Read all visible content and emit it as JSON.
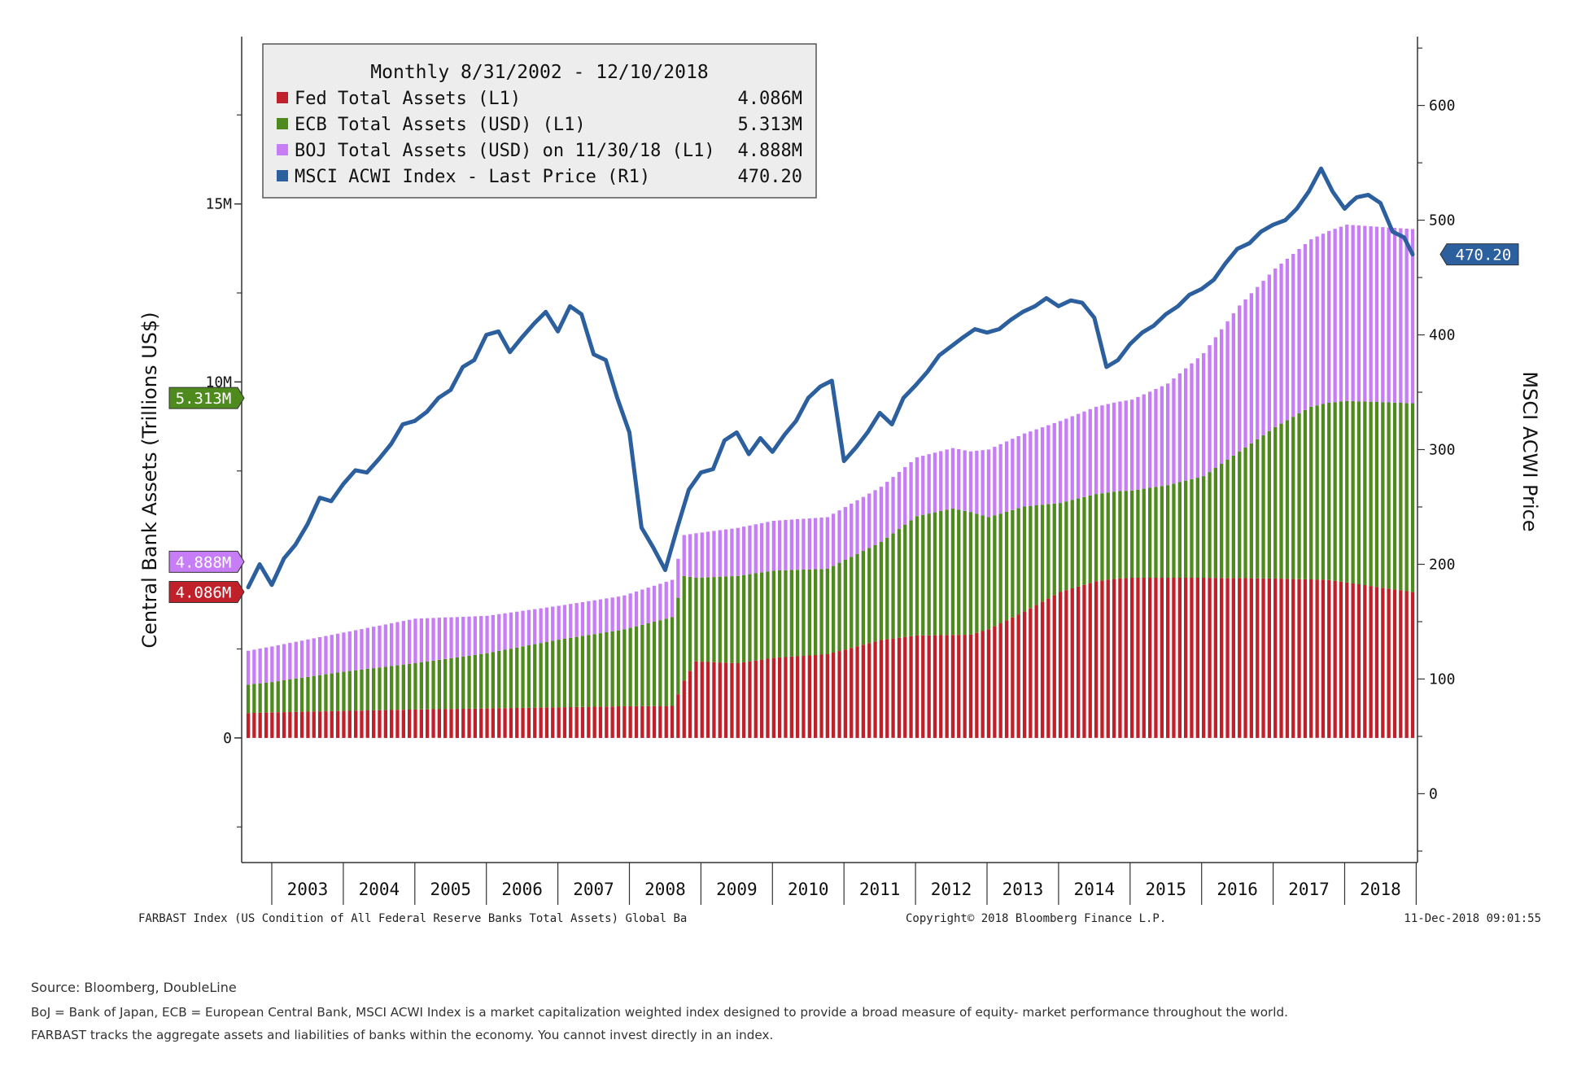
{
  "chart_data": {
    "type": "bar",
    "stacked": true,
    "period": "Monthly 8/31/2002 - 12/10/2018",
    "ylabel_left": "Central Bank Assets (Trillions US$)",
    "ylabel_right": "MSCI ACWI Price",
    "left_axis": {
      "min": -3.5,
      "max": 19.7,
      "ticks": [
        "0",
        "10M",
        "15M"
      ],
      "tick_values": [
        0,
        10,
        15
      ],
      "minor_step": 2.5
    },
    "right_axis": {
      "min": -60,
      "max": 660,
      "ticks": [
        "0",
        "100",
        "200",
        "300",
        "400",
        "500",
        "600"
      ],
      "tick_values": [
        0,
        100,
        200,
        300,
        400,
        500,
        600
      ]
    },
    "x_labels": [
      "2003",
      "2004",
      "2005",
      "2006",
      "2007",
      "2008",
      "2009",
      "2010",
      "2011",
      "2012",
      "2013",
      "2014",
      "2015",
      "2016",
      "2017",
      "2018"
    ],
    "x_start": 2002.67,
    "x_end": 2018.95,
    "legend": [
      {
        "label": "Fed Total Assets (L1)",
        "value": "4.086M",
        "color": "#c0202a"
      },
      {
        "label": "ECB Total Assets (USD) (L1)",
        "value": "5.313M",
        "color": "#4f8a1f"
      },
      {
        "label": "BOJ Total Assets (USD) on 11/30/18 (L1)",
        "value": "4.888M",
        "color": "#c77df6"
      },
      {
        "label": "MSCI ACWI Index - Last Price (R1)",
        "value": "470.20",
        "color": "#2c5f9e"
      }
    ],
    "last_value_tags": [
      {
        "value": "5.313M",
        "axis": "left",
        "color": "#4f8a1f"
      },
      {
        "value": "4.888M",
        "axis": "left",
        "color": "#c77df6"
      },
      {
        "value": "4.086M",
        "axis": "left",
        "color": "#c0202a"
      },
      {
        "value": "470.20",
        "axis": "right",
        "color": "#2c5f9e"
      }
    ],
    "fed_series": {
      "name": "Fed Total Assets (L1)",
      "x": [
        2002.67,
        2003.0,
        2004.0,
        2005.0,
        2006.0,
        2007.0,
        2007.9,
        2008.6,
        2008.75,
        2008.92,
        2009.5,
        2010.0,
        2010.75,
        2011.5,
        2012.0,
        2012.75,
        2013.0,
        2013.5,
        2014.0,
        2014.5,
        2014.8,
        2015.0,
        2016.0,
        2017.0,
        2017.75,
        2018.95
      ],
      "values": [
        0.7,
        0.72,
        0.76,
        0.8,
        0.83,
        0.86,
        0.89,
        0.9,
        1.6,
        2.15,
        2.1,
        2.25,
        2.35,
        2.75,
        2.88,
        2.9,
        3.05,
        3.55,
        4.1,
        4.4,
        4.48,
        4.5,
        4.5,
        4.48,
        4.44,
        4.09
      ]
    },
    "ecb_series": {
      "name": "ECB Total Assets (USD) (L1)",
      "x": [
        2002.67,
        2003.0,
        2004.0,
        2005.0,
        2006.0,
        2007.0,
        2007.9,
        2008.6,
        2008.75,
        2008.92,
        2009.5,
        2010.0,
        2010.75,
        2011.5,
        2012.0,
        2012.5,
        2012.75,
        2013.0,
        2013.5,
        2014.0,
        2014.5,
        2015.0,
        2015.5,
        2016.0,
        2016.5,
        2017.0,
        2017.5,
        2018.0,
        2018.95
      ],
      "values": [
        0.8,
        0.85,
        1.1,
        1.3,
        1.55,
        1.9,
        2.15,
        2.5,
        2.95,
        2.35,
        2.45,
        2.45,
        2.4,
        2.75,
        3.35,
        3.55,
        3.45,
        3.15,
        2.95,
        2.5,
        2.45,
        2.45,
        2.6,
        2.85,
        3.55,
        4.25,
        4.85,
        5.1,
        5.31
      ]
    },
    "boj_series": {
      "name": "BOJ Total Assets (USD) on 11/30/18 (L1)",
      "x": [
        2002.67,
        2003.0,
        2004.0,
        2005.0,
        2006.0,
        2007.0,
        2007.9,
        2008.6,
        2008.75,
        2008.92,
        2009.5,
        2010.0,
        2010.75,
        2011.5,
        2012.0,
        2012.5,
        2012.75,
        2013.0,
        2013.5,
        2014.0,
        2014.5,
        2015.0,
        2015.5,
        2016.0,
        2016.5,
        2017.0,
        2017.5,
        2018.0,
        2018.95
      ],
      "values": [
        0.95,
        1.0,
        1.1,
        1.25,
        1.05,
        0.95,
        0.95,
        1.05,
        1.15,
        1.25,
        1.35,
        1.4,
        1.45,
        1.55,
        1.65,
        1.7,
        1.7,
        1.9,
        2.05,
        2.3,
        2.45,
        2.55,
        2.85,
        3.45,
        4.1,
        4.45,
        4.7,
        4.95,
        4.89
      ]
    },
    "msci_series": {
      "name": "MSCI ACWI Index - Last Price (R1)",
      "x": [
        2002.67,
        2002.83,
        2003.0,
        2003.17,
        2003.33,
        2003.5,
        2003.67,
        2003.83,
        2004.0,
        2004.17,
        2004.33,
        2004.5,
        2004.67,
        2004.83,
        2005.0,
        2005.17,
        2005.33,
        2005.5,
        2005.67,
        2005.83,
        2006.0,
        2006.17,
        2006.33,
        2006.5,
        2006.67,
        2006.83,
        2007.0,
        2007.17,
        2007.33,
        2007.5,
        2007.67,
        2007.83,
        2008.0,
        2008.17,
        2008.33,
        2008.5,
        2008.67,
        2008.83,
        2009.0,
        2009.17,
        2009.33,
        2009.5,
        2009.67,
        2009.83,
        2010.0,
        2010.17,
        2010.33,
        2010.5,
        2010.67,
        2010.83,
        2011.0,
        2011.17,
        2011.33,
        2011.5,
        2011.67,
        2011.83,
        2012.0,
        2012.17,
        2012.33,
        2012.5,
        2012.67,
        2012.83,
        2013.0,
        2013.17,
        2013.33,
        2013.5,
        2013.67,
        2013.83,
        2014.0,
        2014.17,
        2014.33,
        2014.5,
        2014.67,
        2014.83,
        2015.0,
        2015.17,
        2015.33,
        2015.5,
        2015.67,
        2015.83,
        2016.0,
        2016.17,
        2016.33,
        2016.5,
        2016.67,
        2016.83,
        2017.0,
        2017.17,
        2017.33,
        2017.5,
        2017.67,
        2017.83,
        2018.0,
        2018.08,
        2018.17,
        2018.33,
        2018.5,
        2018.67,
        2018.83,
        2018.95
      ],
      "values": [
        180,
        200,
        182,
        205,
        217,
        235,
        258,
        255,
        270,
        282,
        280,
        292,
        305,
        322,
        325,
        333,
        345,
        352,
        372,
        378,
        400,
        403,
        385,
        398,
        410,
        420,
        403,
        425,
        418,
        383,
        378,
        345,
        315,
        232,
        215,
        195,
        232,
        265,
        280,
        283,
        308,
        315,
        296,
        310,
        298,
        313,
        325,
        345,
        355,
        360,
        290,
        302,
        315,
        332,
        322,
        345,
        356,
        368,
        382,
        390,
        398,
        405,
        402,
        405,
        413,
        420,
        425,
        432,
        425,
        430,
        428,
        415,
        372,
        378,
        392,
        402,
        408,
        418,
        425,
        435,
        440,
        448,
        462,
        475,
        480,
        490,
        496,
        500,
        510,
        525,
        545,
        525,
        510,
        515,
        520,
        522,
        515,
        490,
        485,
        470.2
      ]
    }
  },
  "footer": {
    "bloomberg_left": "FARBAST Index (US Condition of All Federal Reserve Banks Total Assets) Global Ba",
    "bloomberg_center": "Copyright© 2018 Bloomberg Finance L.P.",
    "bloomberg_right": "11-Dec-2018 09:01:55",
    "source": "Source: Bloomberg, DoubleLine",
    "note_line1": "BoJ = Bank of Japan, ECB = European Central Bank, MSCI ACWI Index  is a market capitalization weighted index designed to provide a broad measure of equity- market performance throughout the world.",
    "note_line2": "FARBAST tracks the aggregate assets and liabilities of banks within the economy. You cannot invest directly in an index."
  }
}
